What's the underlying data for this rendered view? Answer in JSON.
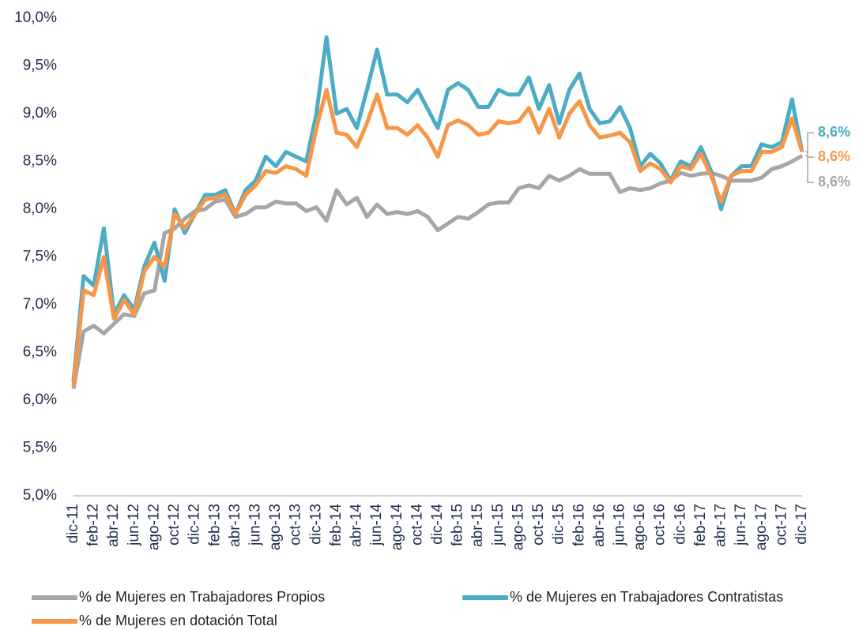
{
  "chart_data": {
    "type": "line",
    "categories": [
      "dic-11",
      null,
      "feb-12",
      null,
      "abr-12",
      null,
      "jun-12",
      null,
      "ago-12",
      null,
      "oct-12",
      null,
      "dic-12",
      null,
      "feb-13",
      null,
      "abr-13",
      null,
      "jun-13",
      null,
      "ago-13",
      null,
      "oct-13",
      null,
      "dic-13",
      null,
      "feb-14",
      null,
      "abr-14",
      null,
      "jun-14",
      null,
      "ago-14",
      null,
      "oct-14",
      null,
      "dic-14",
      null,
      "feb-15",
      null,
      "abr-15",
      null,
      "jun-15",
      null,
      "ago-15",
      null,
      "oct-15",
      null,
      "dic-15",
      null,
      "feb-16",
      null,
      "abr-16",
      null,
      "jun-16",
      null,
      "ago-16",
      null,
      "oct-16",
      null,
      "dic-16",
      null,
      "feb-17",
      null,
      "abr-17",
      null,
      "jun-17",
      null,
      "ago-17",
      null,
      "oct-17",
      null,
      "dic-17"
    ],
    "series": [
      {
        "name": "% de Mujeres en Trabajadores Propios",
        "color": "#a6a6a6",
        "values": [
          6.12,
          6.72,
          6.78,
          6.7,
          6.8,
          6.9,
          6.88,
          7.12,
          7.15,
          7.75,
          7.8,
          7.9,
          7.98,
          8.0,
          8.08,
          8.1,
          7.92,
          7.95,
          8.02,
          8.02,
          8.08,
          8.06,
          8.06,
          7.98,
          8.02,
          7.88,
          8.2,
          8.05,
          8.12,
          7.92,
          8.05,
          7.95,
          7.97,
          7.95,
          7.98,
          7.92,
          7.78,
          7.85,
          7.92,
          7.9,
          7.97,
          8.05,
          8.07,
          8.07,
          8.22,
          8.25,
          8.22,
          8.35,
          8.3,
          8.35,
          8.42,
          8.37,
          8.37,
          8.37,
          8.18,
          8.22,
          8.2,
          8.22,
          8.27,
          8.3,
          8.38,
          8.35,
          8.37,
          8.38,
          8.35,
          8.3,
          8.3,
          8.3,
          8.33,
          8.42,
          8.45,
          8.5,
          8.56
        ],
        "value_labels": [
          null,
          null,
          null,
          null,
          null,
          null,
          null,
          null,
          null,
          null,
          null,
          null,
          null,
          null,
          null,
          null,
          null,
          null,
          null,
          null,
          null,
          null,
          null,
          null,
          null,
          null,
          null,
          null,
          null,
          null,
          null,
          null,
          null,
          null,
          null,
          null,
          null,
          null,
          null,
          null,
          null,
          null,
          null,
          null,
          null,
          null,
          null,
          null,
          null,
          null,
          null,
          null,
          null,
          null,
          null,
          null,
          null,
          null,
          null,
          null,
          null,
          null,
          null,
          null,
          null,
          null,
          null,
          null,
          null,
          null,
          null,
          null,
          "8,6%"
        ]
      },
      {
        "name": "% de Mujeres en Trabajadores Contratistas",
        "color": "#4bacc6",
        "values": [
          6.2,
          7.3,
          7.2,
          7.8,
          6.9,
          7.1,
          6.95,
          7.4,
          7.65,
          7.25,
          8.0,
          7.75,
          7.95,
          8.15,
          8.15,
          8.2,
          7.95,
          8.2,
          8.3,
          8.55,
          8.45,
          8.6,
          8.55,
          8.5,
          9.0,
          9.8,
          9.0,
          9.05,
          8.85,
          9.25,
          9.67,
          9.2,
          9.2,
          9.12,
          9.25,
          9.05,
          8.85,
          9.25,
          9.32,
          9.25,
          9.07,
          9.07,
          9.25,
          9.2,
          9.2,
          9.38,
          9.05,
          9.3,
          8.9,
          9.25,
          9.42,
          9.05,
          8.9,
          8.92,
          9.07,
          8.85,
          8.45,
          8.58,
          8.48,
          8.3,
          8.5,
          8.45,
          8.65,
          8.4,
          8.0,
          8.35,
          8.45,
          8.45,
          8.68,
          8.65,
          8.7,
          9.15,
          8.6
        ],
        "value_labels": [
          null,
          null,
          null,
          null,
          null,
          null,
          null,
          null,
          null,
          null,
          null,
          null,
          null,
          null,
          null,
          null,
          null,
          null,
          null,
          null,
          null,
          null,
          null,
          null,
          null,
          null,
          null,
          null,
          null,
          null,
          null,
          null,
          null,
          null,
          null,
          null,
          null,
          null,
          null,
          null,
          null,
          null,
          null,
          null,
          null,
          null,
          null,
          null,
          null,
          null,
          null,
          null,
          null,
          null,
          null,
          null,
          null,
          null,
          null,
          null,
          null,
          null,
          null,
          null,
          null,
          null,
          null,
          null,
          null,
          null,
          null,
          null,
          "8,6%"
        ]
      },
      {
        "name": "% de Mujeres en dotación Total",
        "color": "#f79646",
        "values": [
          6.15,
          7.15,
          7.1,
          7.5,
          6.85,
          7.05,
          6.9,
          7.35,
          7.5,
          7.4,
          7.95,
          7.8,
          7.95,
          8.1,
          8.12,
          8.15,
          7.95,
          8.15,
          8.25,
          8.4,
          8.38,
          8.45,
          8.42,
          8.35,
          8.85,
          9.25,
          8.8,
          8.78,
          8.65,
          8.9,
          9.2,
          8.85,
          8.85,
          8.78,
          8.88,
          8.75,
          8.55,
          8.88,
          8.93,
          8.88,
          8.78,
          8.8,
          8.92,
          8.9,
          8.92,
          9.06,
          8.8,
          9.05,
          8.75,
          9.0,
          9.13,
          8.88,
          8.75,
          8.77,
          8.8,
          8.7,
          8.4,
          8.48,
          8.42,
          8.28,
          8.45,
          8.42,
          8.58,
          8.35,
          8.08,
          8.35,
          8.4,
          8.4,
          8.6,
          8.6,
          8.65,
          8.95,
          8.6
        ],
        "value_labels": [
          null,
          null,
          null,
          null,
          null,
          null,
          null,
          null,
          null,
          null,
          null,
          null,
          null,
          null,
          null,
          null,
          null,
          null,
          null,
          null,
          null,
          null,
          null,
          null,
          null,
          null,
          null,
          null,
          null,
          null,
          null,
          null,
          null,
          null,
          null,
          null,
          null,
          null,
          null,
          null,
          null,
          null,
          null,
          null,
          null,
          null,
          null,
          null,
          null,
          null,
          null,
          null,
          null,
          null,
          null,
          null,
          null,
          null,
          null,
          null,
          null,
          null,
          null,
          null,
          null,
          null,
          null,
          null,
          null,
          null,
          null,
          null,
          "8,6%"
        ]
      }
    ],
    "ylim": [
      5,
      10
    ],
    "yticks": [
      {
        "value": 5,
        "label": "5,0%"
      },
      {
        "value": 5.5,
        "label": "5,5%"
      },
      {
        "value": 6,
        "label": "6,0%"
      },
      {
        "value": 6.5,
        "label": "6,5%"
      },
      {
        "value": 7,
        "label": "7,0%"
      },
      {
        "value": 7.5,
        "label": "7,5%"
      },
      {
        "value": 8,
        "label": "8,0%"
      },
      {
        "value": 8.5,
        "label": "8,5%"
      },
      {
        "value": 9,
        "label": "9,0%"
      },
      {
        "value": 9.5,
        "label": "9,5%"
      },
      {
        "value": 10,
        "label": "10,0%"
      }
    ],
    "grid": false
  }
}
